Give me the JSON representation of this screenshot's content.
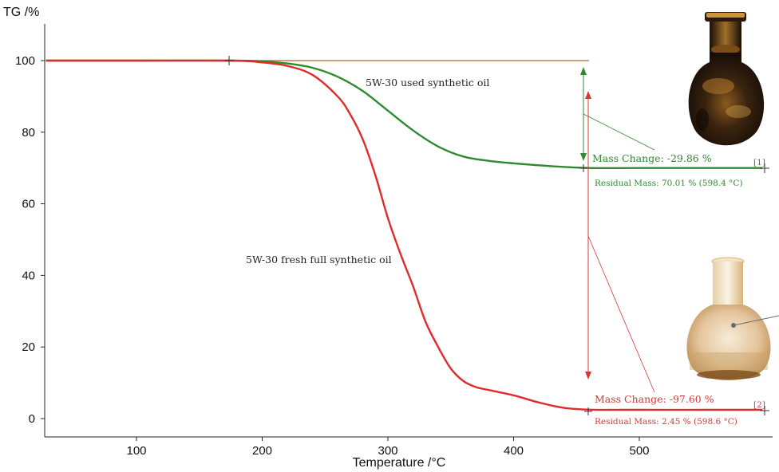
{
  "chart_data": {
    "type": "line",
    "ylabel": "TG /%",
    "xlabel": "Temperature /°C",
    "xlim": [
      28,
      598
    ],
    "ylim": [
      -4,
      104
    ],
    "x_ticks": [
      100,
      200,
      300,
      400,
      500
    ],
    "y_ticks": [
      0,
      20,
      40,
      60,
      80,
      100
    ],
    "baseline_level": 100,
    "series": [
      {
        "name": "5W-30 used synthetic oil",
        "color": "#2e8b2e",
        "x": [
          28,
          100,
          175,
          200,
          220,
          240,
          260,
          280,
          300,
          320,
          340,
          360,
          380,
          400,
          430,
          460,
          500,
          560,
          598
        ],
        "values": [
          100,
          100,
          100,
          99.8,
          99.2,
          98,
          95.5,
          91.5,
          86,
          80.5,
          76,
          73.2,
          72,
          71.3,
          70.5,
          70,
          70,
          70,
          70.01
        ]
      },
      {
        "name": "5W-30 fresh full synthetic oil",
        "color": "#e02b2b",
        "x": [
          28,
          100,
          175,
          200,
          220,
          240,
          260,
          270,
          280,
          290,
          300,
          310,
          320,
          330,
          340,
          350,
          360,
          370,
          380,
          400,
          420,
          440,
          460,
          500,
          560,
          598
        ],
        "values": [
          100,
          100,
          100,
          99.5,
          98.5,
          96,
          90,
          85,
          78,
          68,
          56,
          46,
          37,
          27,
          20,
          14,
          10.5,
          8.8,
          8,
          6.5,
          4.5,
          3,
          2.5,
          2.45,
          2.45,
          2.45
        ]
      }
    ],
    "annotations": {
      "used": {
        "mass_change": "Mass Change: -29.86 %",
        "residual": "Residual Mass: 70.01 % (598.4 °C)",
        "tag": "[1]",
        "mass_change_value": -29.86,
        "residual_value": 70.01,
        "residual_temp": 598.4
      },
      "fresh": {
        "mass_change": "Mass Change: -97.60 %",
        "residual": "Residual Mass: 2.45 % (598.6 °C)",
        "tag": "[2]",
        "mass_change_value": -97.6,
        "residual_value": 2.45,
        "residual_temp": 598.6
      }
    }
  }
}
